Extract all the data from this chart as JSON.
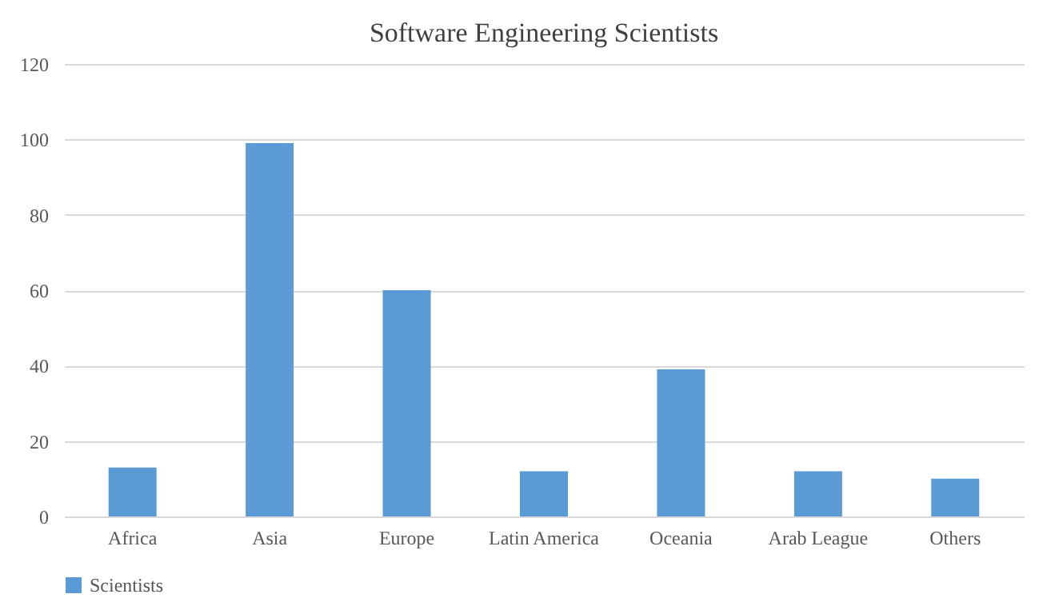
{
  "chart_data": {
    "type": "bar",
    "title": "Software Engineering  Scientists",
    "categories": [
      "Africa",
      "Asia",
      "Europe",
      "Latin America",
      "Oceania",
      "Arab League",
      "Others"
    ],
    "series": [
      {
        "name": "Scientists",
        "color": "#5b9bd5",
        "values": [
          13,
          99,
          60,
          12,
          39,
          12,
          10
        ]
      }
    ],
    "ylim": [
      0,
      120
    ],
    "yticks": [
      0,
      20,
      40,
      60,
      80,
      100,
      120
    ],
    "grid": "y",
    "legend": "bottom"
  }
}
